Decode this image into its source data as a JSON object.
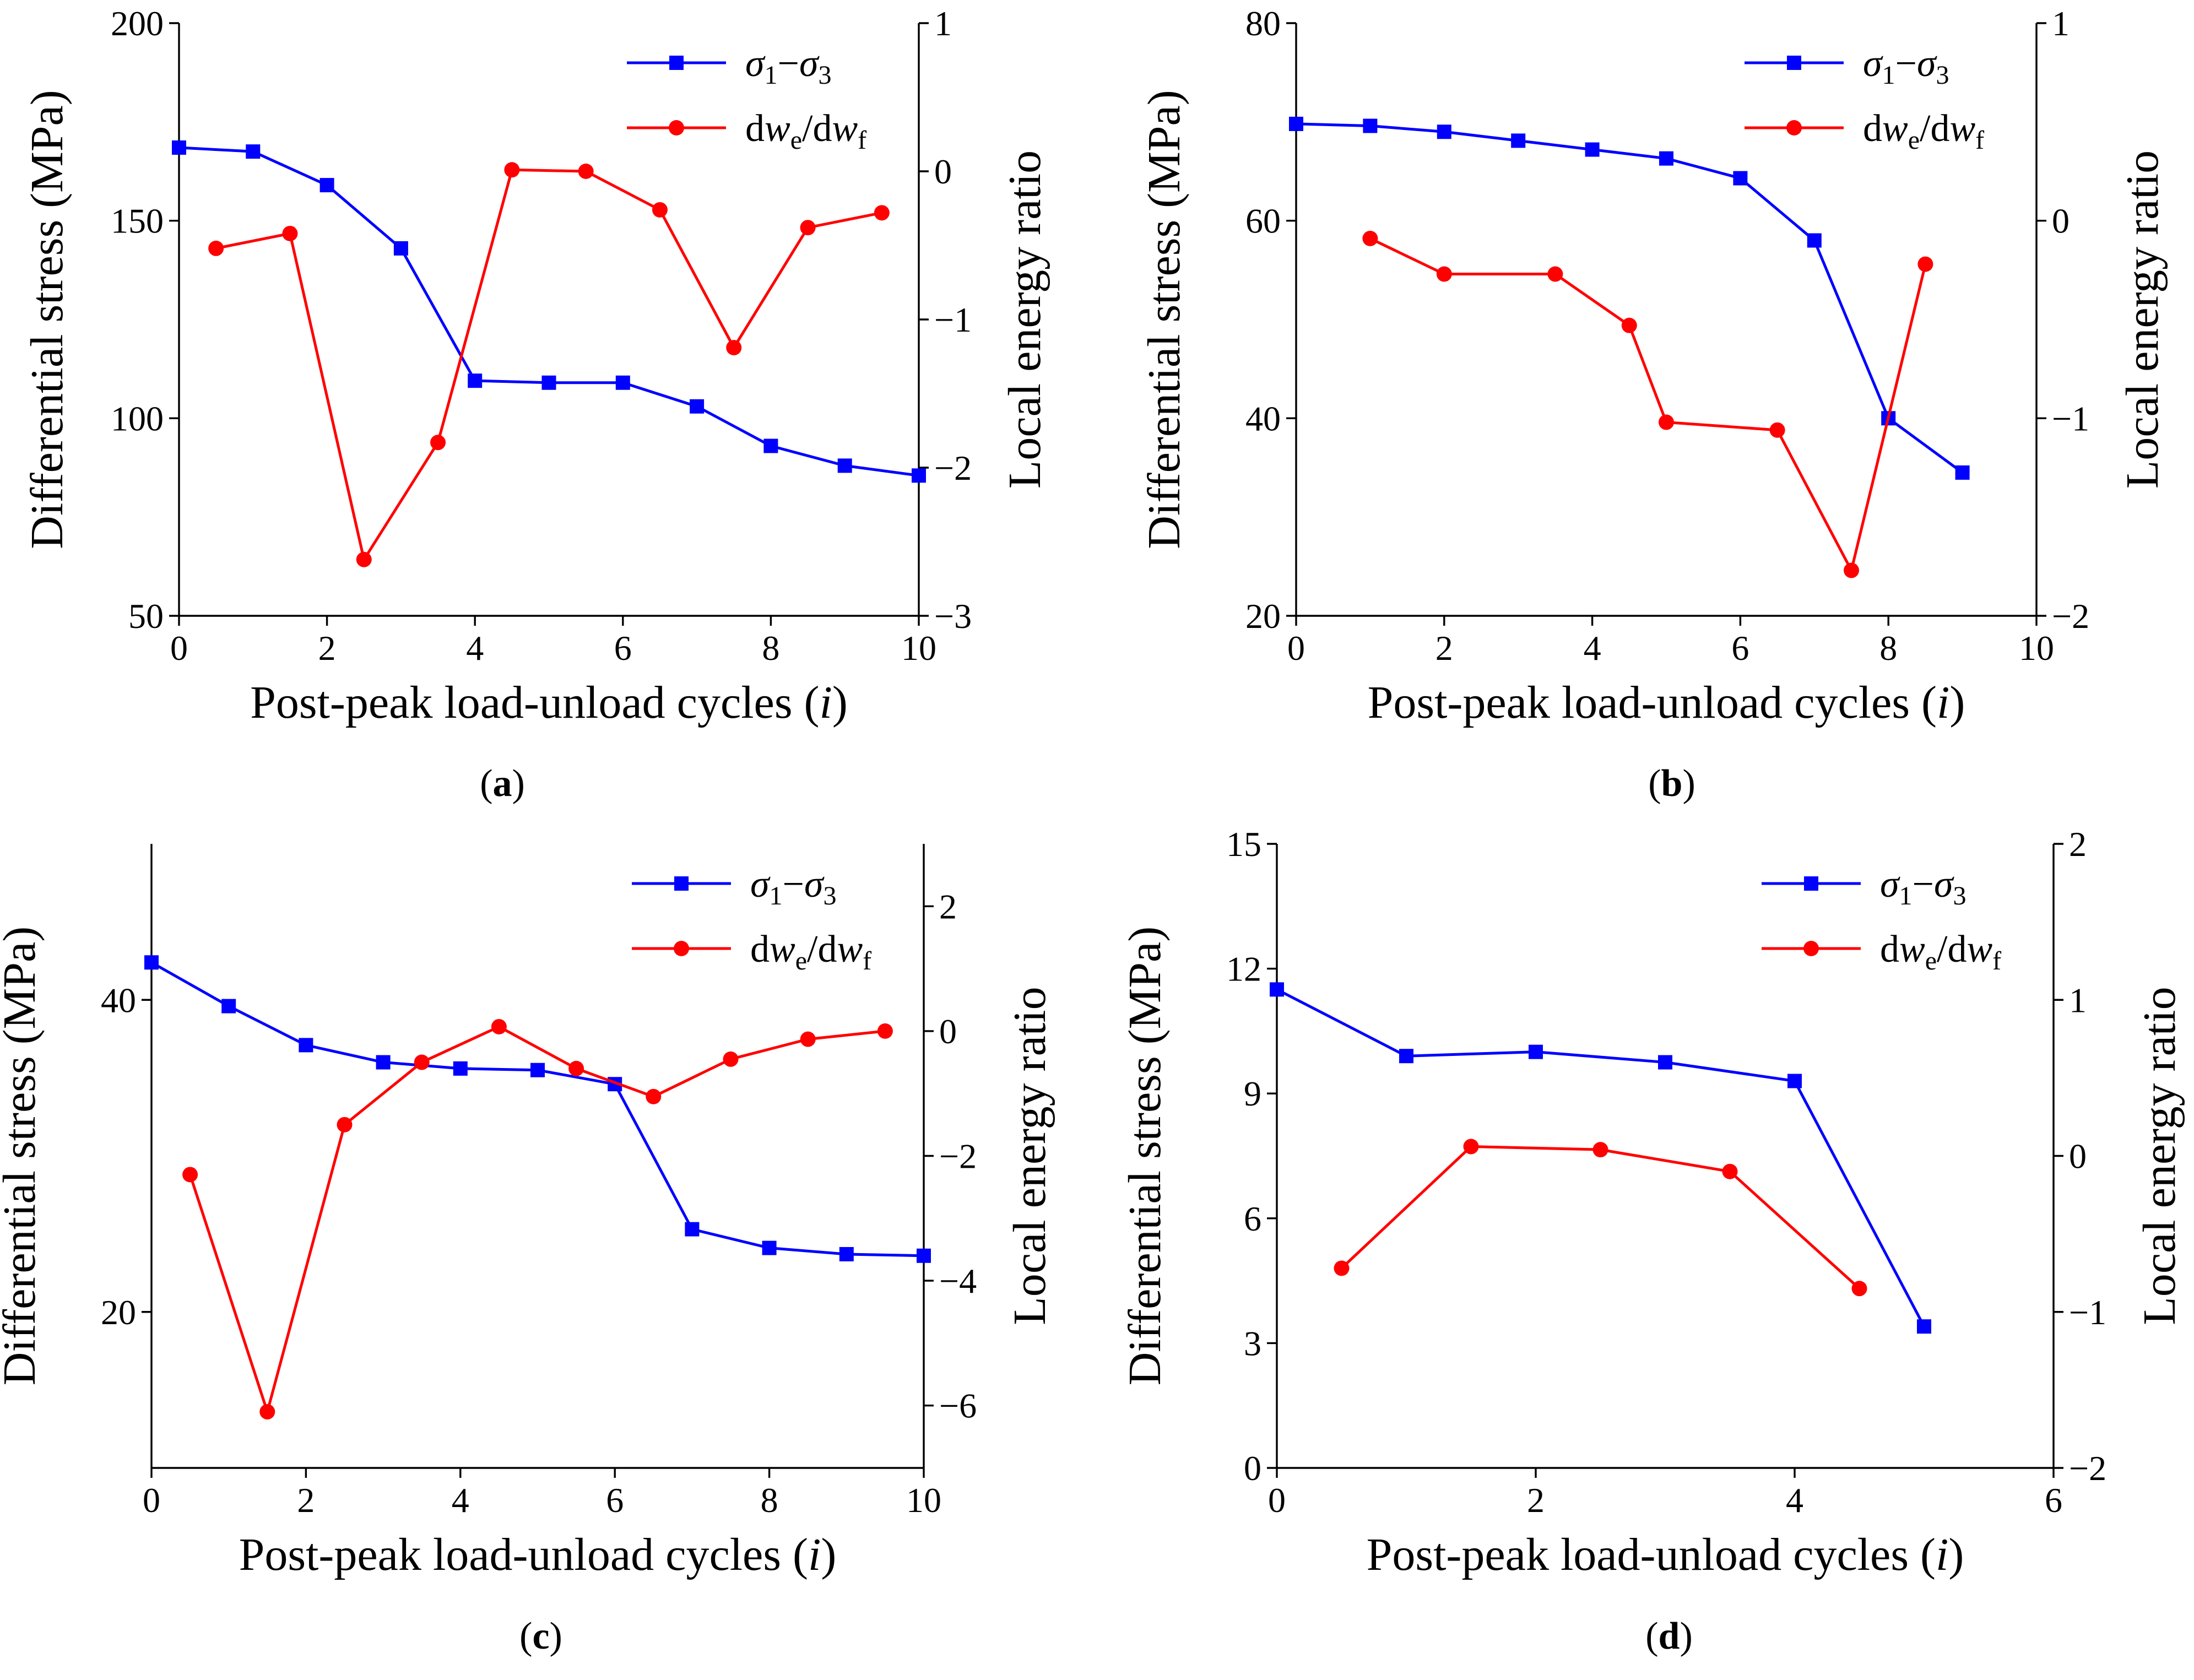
{
  "colors": {
    "stress": "#0000ff",
    "energy": "#ff0000",
    "axis": "#000000"
  },
  "chart_data": [
    {
      "type": "line",
      "caption": "a",
      "xlabel": "Post-peak load-unload cycles",
      "xlabel_var": "i",
      "ylabel_left": "Differential stress (MPa)",
      "ylabel_right": "Local energy ratio",
      "xlim": [
        0,
        10
      ],
      "xticks": [
        0,
        2,
        4,
        6,
        8,
        10
      ],
      "ylim_left": [
        50,
        200
      ],
      "yticks_left": [
        50,
        100,
        150,
        200
      ],
      "ylim_right": [
        -3,
        1
      ],
      "yticks_right": [
        -3,
        -2,
        -1,
        0,
        1
      ],
      "series": [
        {
          "name": "σ1−σ3",
          "axis": "left",
          "marker": "square",
          "x": [
            0,
            1,
            2,
            3,
            4,
            5,
            6,
            7,
            8,
            9,
            10
          ],
          "values": [
            168.5,
            167.5,
            159,
            143,
            109.5,
            109,
            109,
            103,
            93,
            88,
            85.5
          ]
        },
        {
          "name": "dwe/dwf",
          "axis": "right",
          "marker": "circle",
          "x": [
            0.5,
            1.5,
            2.5,
            3.5,
            4.5,
            5.5,
            6.5,
            7.5,
            8.5,
            9.5
          ],
          "values": [
            -0.52,
            -0.42,
            -2.62,
            -1.83,
            0.01,
            0.0,
            -0.26,
            -1.19,
            -0.38,
            -0.28
          ]
        }
      ]
    },
    {
      "type": "line",
      "caption": "b",
      "xlabel": "Post-peak load-unload cycles",
      "xlabel_var": "i",
      "ylabel_left": "Differential stress (MPa)",
      "ylabel_right": "Local energy ratio",
      "xlim": [
        0,
        10
      ],
      "xticks": [
        0,
        2,
        4,
        6,
        8,
        10
      ],
      "ylim_left": [
        20,
        80
      ],
      "yticks_left": [
        20,
        40,
        60,
        80
      ],
      "ylim_right": [
        -2,
        1
      ],
      "yticks_right": [
        -2,
        -1,
        0,
        1
      ],
      "series": [
        {
          "name": "σ1−σ3",
          "axis": "left",
          "marker": "square",
          "x": [
            0,
            1,
            2,
            3,
            4,
            5,
            6,
            7,
            8,
            9
          ],
          "values": [
            69.8,
            69.6,
            69.0,
            68.1,
            67.2,
            66.3,
            64.3,
            58.0,
            40.0,
            34.5
          ]
        },
        {
          "name": "dwe/dwf",
          "axis": "right",
          "marker": "circle",
          "x": [
            1,
            2,
            3.5,
            4.5,
            5,
            6.5,
            7.5,
            8.5
          ],
          "values": [
            -0.09,
            -0.27,
            -0.27,
            -0.53,
            -1.02,
            -1.06,
            -1.77,
            -0.22
          ]
        }
      ]
    },
    {
      "type": "line",
      "caption": "c",
      "xlabel": "Post-peak load-unload cycles",
      "xlabel_var": "i",
      "ylabel_left": "Differential stress (MPa)",
      "ylabel_right": "Local energy ratio",
      "xlim": [
        0,
        10
      ],
      "xticks": [
        0,
        2,
        4,
        6,
        8,
        10
      ],
      "ylim_left": [
        10,
        50
      ],
      "yticks_left": [
        20,
        40
      ],
      "ylim_right": [
        -7,
        3
      ],
      "yticks_right": [
        -6,
        -4,
        -2,
        0,
        2
      ],
      "series": [
        {
          "name": "σ1−σ3",
          "axis": "left",
          "marker": "square",
          "x": [
            0,
            1,
            2,
            3,
            4,
            5,
            6,
            7,
            8,
            9,
            10
          ],
          "values": [
            42.4,
            39.6,
            37.1,
            36.0,
            35.6,
            35.5,
            34.6,
            25.3,
            24.1,
            23.7,
            23.6
          ]
        },
        {
          "name": "dwe/dwf",
          "axis": "right",
          "marker": "circle",
          "x": [
            0.5,
            1.5,
            2.5,
            3.5,
            4.5,
            5.5,
            6.5,
            7.5,
            8.5,
            9.5
          ],
          "values": [
            -2.3,
            -6.1,
            -1.5,
            -0.5,
            0.07,
            -0.6,
            -1.05,
            -0.45,
            -0.13,
            0.0
          ]
        }
      ]
    },
    {
      "type": "line",
      "caption": "d",
      "xlabel": "Post-peak load-unload cycles",
      "xlabel_var": "i",
      "ylabel_left": "Differential stress (MPa)",
      "ylabel_right": "Local energy ratio",
      "xlim": [
        0,
        6
      ],
      "xticks": [
        0,
        2,
        4,
        6
      ],
      "ylim_left": [
        0,
        15
      ],
      "yticks_left": [
        0,
        3,
        6,
        9,
        12,
        15
      ],
      "ylim_right": [
        -2,
        2
      ],
      "yticks_right": [
        -2,
        -1,
        0,
        1,
        2
      ],
      "series": [
        {
          "name": "σ1−σ3",
          "axis": "left",
          "marker": "square",
          "x": [
            0,
            1,
            2,
            3,
            4,
            5
          ],
          "values": [
            11.5,
            9.9,
            10.0,
            9.75,
            9.3,
            3.4
          ]
        },
        {
          "name": "dwe/dwf",
          "axis": "right",
          "marker": "circle",
          "x": [
            0.5,
            1.5,
            2.5,
            3.5,
            4.5
          ],
          "values": [
            -0.72,
            0.06,
            0.04,
            -0.1,
            -0.85
          ]
        }
      ]
    }
  ]
}
